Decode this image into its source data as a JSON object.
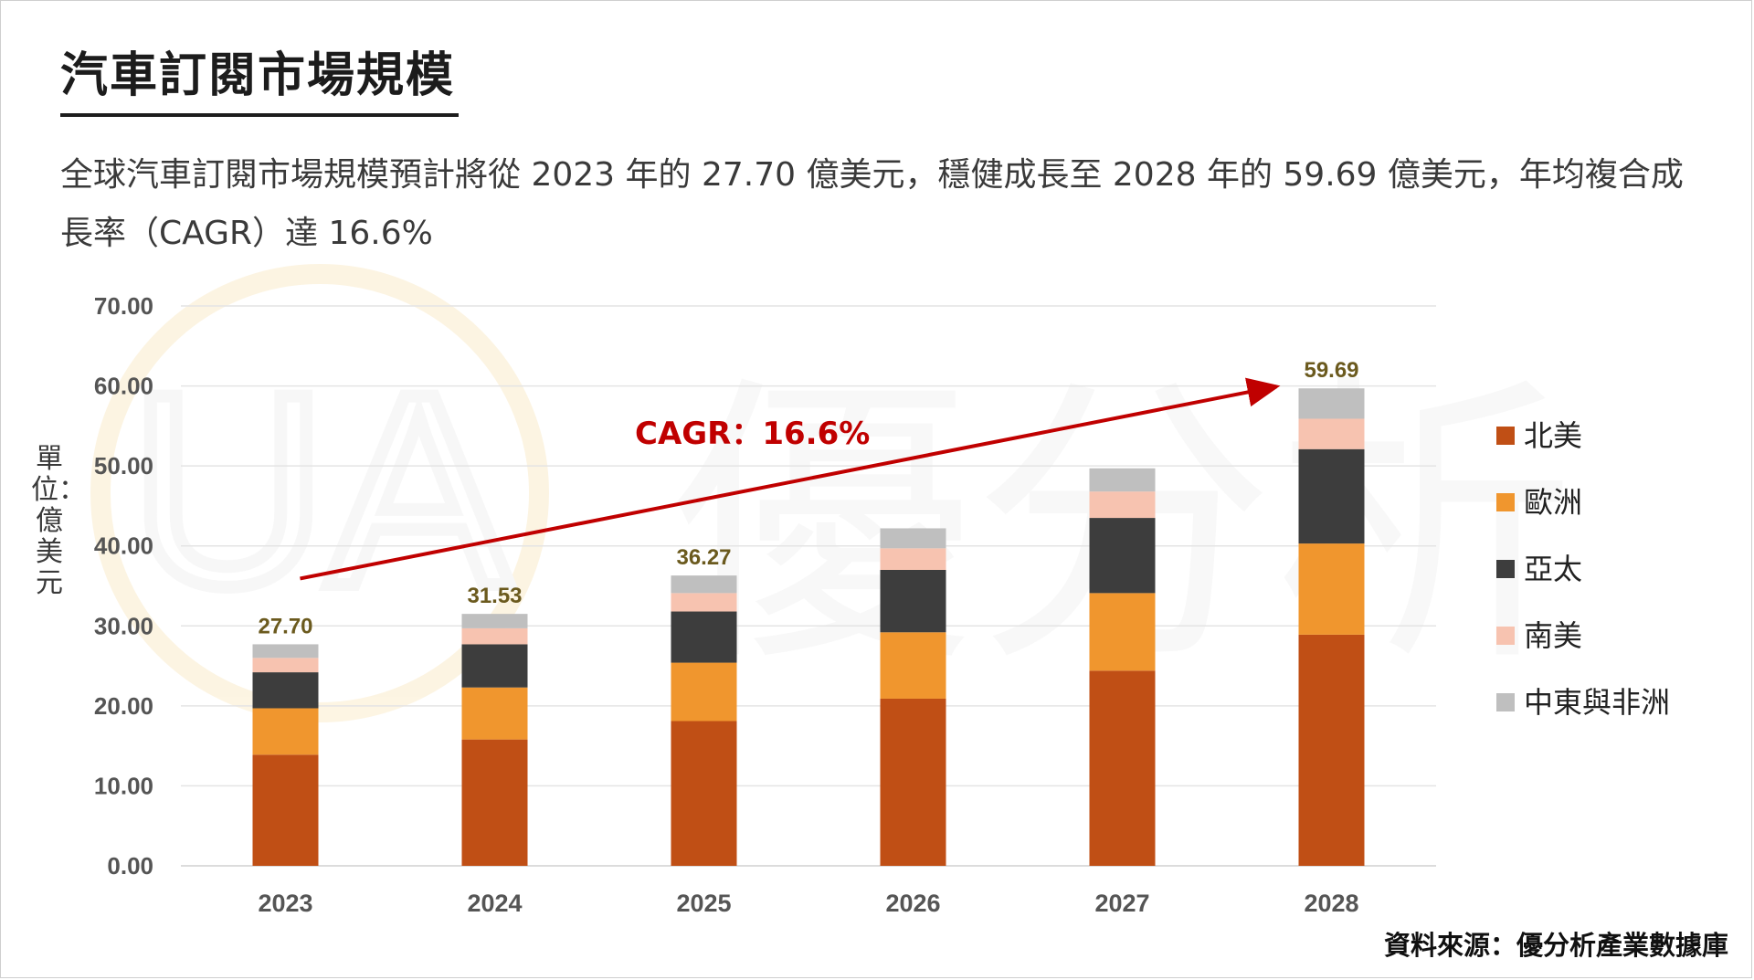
{
  "title": "汽車訂閱市場規模",
  "subtitle": "全球汽車訂閱市場規模預計將從 2023 年的 27.70 億美元，穩健成長至 2028 年的 59.69 億美元，年均複合成長率（CAGR）達 16.6%",
  "source": "資料來源：優分析產業數據庫",
  "watermark": {
    "text": "優分析",
    "logo_text": "UA"
  },
  "colors": {
    "north_america": "#c04f15",
    "europe": "#f0962e",
    "asia_pacific": "#3d3d3d",
    "south_america": "#f7c3b0",
    "mea": "#bfbfbf",
    "total_label": "#6b5a1e",
    "cagr": "#c00000"
  },
  "chart_data": {
    "type": "bar",
    "stacked": true,
    "categories": [
      "2023",
      "2024",
      "2025",
      "2026",
      "2027",
      "2028"
    ],
    "ylabel": "單位：億美元",
    "ylim": [
      0,
      70
    ],
    "yticks": [
      "0.00",
      "10.00",
      "20.00",
      "30.00",
      "40.00",
      "50.00",
      "60.00",
      "70.00"
    ],
    "grid": true,
    "legend_position": "right",
    "series": [
      {
        "name": "北美",
        "color": "#c04f15",
        "values": [
          13.9,
          15.8,
          18.1,
          20.9,
          24.4,
          28.9
        ]
      },
      {
        "name": "歐洲",
        "color": "#f0962e",
        "values": [
          5.8,
          6.5,
          7.3,
          8.3,
          9.7,
          11.4
        ]
      },
      {
        "name": "亞太",
        "color": "#3d3d3d",
        "values": [
          4.5,
          5.4,
          6.4,
          7.8,
          9.4,
          11.8
        ]
      },
      {
        "name": "南美",
        "color": "#f7c3b0",
        "values": [
          1.8,
          2.0,
          2.3,
          2.7,
          3.3,
          3.8
        ]
      },
      {
        "name": "中東與非洲",
        "color": "#bfbfbf",
        "values": [
          1.7,
          1.8,
          2.2,
          2.5,
          2.9,
          3.8
        ]
      }
    ],
    "totals": [
      "27.70",
      "31.53",
      "36.27",
      "",
      "",
      "59.69"
    ],
    "annotation": {
      "text": "CAGR：16.6%",
      "from_category": "2023",
      "to_category": "2028"
    }
  }
}
